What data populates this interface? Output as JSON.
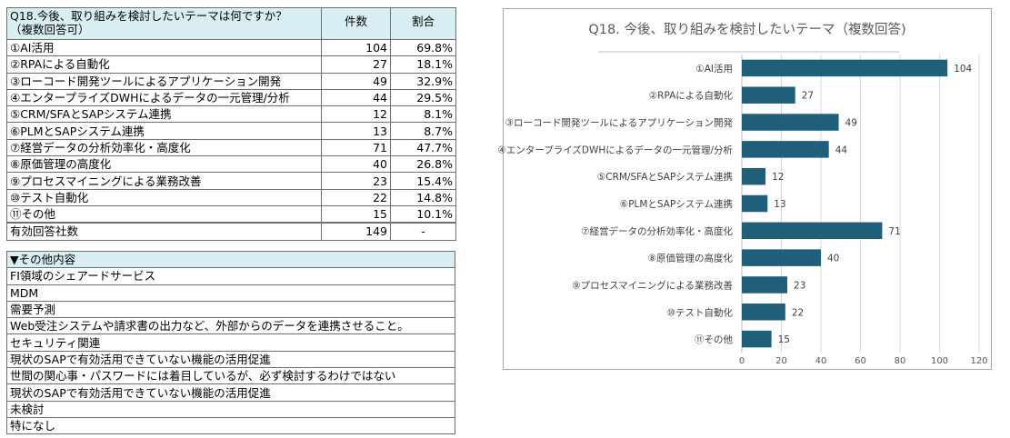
{
  "survey": {
    "question_line1": "Q18.今後、取り組みを検討したいテーマは何ですか？",
    "question_line2": "（複数回答可）",
    "col_count": "件数",
    "col_ratio": "割合",
    "rows": [
      {
        "label": "①AI活用",
        "count": "104",
        "ratio": "69.8%"
      },
      {
        "label": "②RPAによる自動化",
        "count": "27",
        "ratio": "18.1%"
      },
      {
        "label": "③ローコード開発ツールによるアプリケーション開発",
        "count": "49",
        "ratio": "32.9%"
      },
      {
        "label": "④エンタープライズDWHによるデータの一元管理/分析",
        "count": "44",
        "ratio": "29.5%"
      },
      {
        "label": "⑤CRM/SFAとSAPシステム連携",
        "count": "12",
        "ratio": "8.1%"
      },
      {
        "label": "⑥PLMとSAPシステム連携",
        "count": "13",
        "ratio": "8.7%"
      },
      {
        "label": "⑦経営データの分析効率化・高度化",
        "count": "71",
        "ratio": "47.7%"
      },
      {
        "label": "⑧原価管理の高度化",
        "count": "40",
        "ratio": "26.8%"
      },
      {
        "label": "⑨プロセスマイニングによる業務改善",
        "count": "23",
        "ratio": "15.4%"
      },
      {
        "label": "⑩テスト自動化",
        "count": "22",
        "ratio": "14.8%"
      },
      {
        "label": "⑪その他",
        "count": "15",
        "ratio": "10.1%"
      }
    ],
    "total": {
      "label": "有効回答社数",
      "count": "149",
      "ratio": "-"
    }
  },
  "other": {
    "header": "▼その他内容",
    "items": [
      "FI領域のシェアードサービス",
      "MDM",
      "需要予測",
      "Web受注システムや請求書の出力など、外部からのデータを連携させること。",
      "セキュリティ関連",
      "現状のSAPで有効活用できていない機能の活用促進",
      "世間の関心事・パスワードには着目しているが、必ず検討するわけではない",
      "現状のSAPで有効活用できていない機能の活用促進",
      "未検討",
      "特になし"
    ]
  },
  "chart_data": {
    "type": "bar",
    "orientation": "horizontal",
    "title": "Q18. 今後、取り組みを検討したいテーマ（複数回答)",
    "categories": [
      "①AI活用",
      "②RPAによる自動化",
      "③ローコード開発ツールによるアプリケーション開発",
      "④エンタープライズDWHによるデータの一元管理/分析",
      "⑤CRM/SFAとSAPシステム連携",
      "⑥PLMとSAPシステム連携",
      "⑦経営データの分析効率化・高度化",
      "⑧原価管理の高度化",
      "⑨プロセスマイニングによる業務改善",
      "⑩テスト自動化",
      "⑪その他"
    ],
    "values": [
      104,
      27,
      49,
      44,
      12,
      13,
      71,
      40,
      23,
      22,
      15
    ],
    "xlim": [
      0,
      120
    ],
    "xticks": [
      0,
      20,
      40,
      60,
      80,
      100,
      120
    ],
    "xlabel": "",
    "ylabel": "",
    "grid": true,
    "legend": "none",
    "bar_color": "#1f5f7a"
  }
}
